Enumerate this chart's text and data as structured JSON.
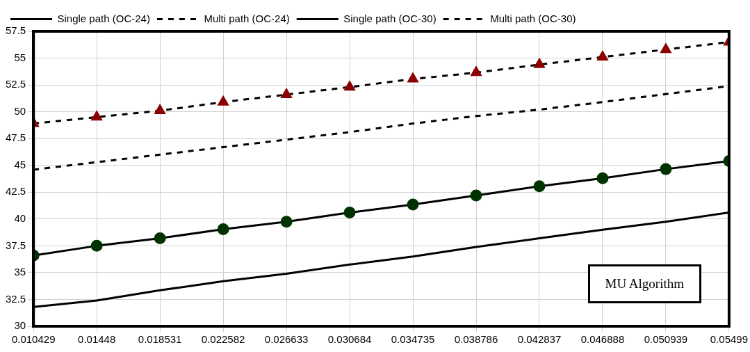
{
  "chart_data": {
    "type": "line",
    "x": [
      0.010429,
      0.01448,
      0.018531,
      0.022582,
      0.026633,
      0.030684,
      0.034735,
      0.038786,
      0.042837,
      0.046888,
      0.050939,
      0.05499
    ],
    "xlim": [
      0.010429,
      0.05499
    ],
    "xticks": [
      0.010429,
      0.01448,
      0.018531,
      0.022582,
      0.026633,
      0.030684,
      0.034735,
      0.038786,
      0.042837,
      0.046888,
      0.050939,
      0.05499
    ],
    "ylim": [
      30,
      57.5
    ],
    "yticks": [
      30,
      32.5,
      35,
      37.5,
      40,
      42.5,
      45,
      47.5,
      50,
      52.5,
      55,
      57.5
    ],
    "grid": true,
    "legend": "top left",
    "series": [
      {
        "name": "Single path (OC-24)",
        "color": "#000000",
        "line_style": "solid",
        "marker": "none",
        "values": [
          31.8,
          32.4,
          33.35,
          34.2,
          34.9,
          35.75,
          36.5,
          37.4,
          38.2,
          39.0,
          39.75,
          40.6
        ]
      },
      {
        "name": "Multi path (OC-24)",
        "color": "#000000",
        "line_style": "dashed",
        "marker": "none",
        "values": [
          44.6,
          45.3,
          46.0,
          46.7,
          47.4,
          48.1,
          48.9,
          49.6,
          50.2,
          50.9,
          51.65,
          52.4
        ]
      },
      {
        "name": "Single path (OC-30)",
        "color": "#003300",
        "line_style": "solid",
        "marker": "circle",
        "values": [
          36.6,
          37.5,
          38.2,
          39.05,
          39.75,
          40.6,
          41.35,
          42.2,
          43.05,
          43.8,
          44.65,
          45.4
        ]
      },
      {
        "name": "Multi path (OC-30)",
        "color": "#8b0000",
        "line_style": "dashed",
        "marker": "triangle",
        "values": [
          48.9,
          49.5,
          50.1,
          50.9,
          51.6,
          52.3,
          53.05,
          53.65,
          54.4,
          55.1,
          55.8,
          56.5
        ]
      }
    ],
    "annotations": [
      "MU Algorithm"
    ]
  }
}
